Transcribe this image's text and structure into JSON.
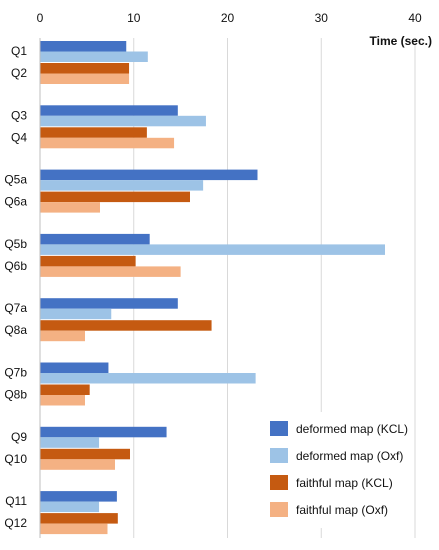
{
  "chart_data": {
    "type": "bar",
    "orientation": "horizontal",
    "xlabel": "Time (sec.)",
    "xlim": [
      0,
      40
    ],
    "xticks": [
      0,
      10,
      20,
      30,
      40
    ],
    "x_axis_position": "top",
    "grid": true,
    "legend_position": "bottom-right",
    "groups": [
      {
        "labels": [
          "Q1",
          "Q2"
        ],
        "bars": [
          {
            "series": "deformed map (KCL)",
            "value": 9.2
          },
          {
            "series": "deformed map (Oxf)",
            "value": 11.5
          },
          {
            "series": "faithful map (KCL)",
            "value": 9.5
          },
          {
            "series": "faithful map (Oxf)",
            "value": 9.5
          }
        ]
      },
      {
        "labels": [
          "Q3",
          "Q4"
        ],
        "bars": [
          {
            "series": "deformed map (KCL)",
            "value": 14.7
          },
          {
            "series": "deformed map (Oxf)",
            "value": 17.7
          },
          {
            "series": "faithful map (KCL)",
            "value": 11.4
          },
          {
            "series": "faithful map (Oxf)",
            "value": 14.3
          }
        ]
      },
      {
        "labels": [
          "Q5a",
          "Q6a"
        ],
        "bars": [
          {
            "series": "deformed map (KCL)",
            "value": 23.2
          },
          {
            "series": "deformed map (Oxf)",
            "value": 17.4
          },
          {
            "series": "faithful map (KCL)",
            "value": 16.0
          },
          {
            "series": "faithful map (Oxf)",
            "value": 6.4
          }
        ]
      },
      {
        "labels": [
          "Q5b",
          "Q6b"
        ],
        "bars": [
          {
            "series": "deformed map (KCL)",
            "value": 11.7
          },
          {
            "series": "deformed map (Oxf)",
            "value": 36.8
          },
          {
            "series": "faithful map (KCL)",
            "value": 10.2
          },
          {
            "series": "faithful map (Oxf)",
            "value": 15.0
          }
        ]
      },
      {
        "labels": [
          "Q7a",
          "Q8a"
        ],
        "bars": [
          {
            "series": "deformed map (KCL)",
            "value": 14.7
          },
          {
            "series": "deformed map (Oxf)",
            "value": 7.6
          },
          {
            "series": "faithful map (KCL)",
            "value": 18.3
          },
          {
            "series": "faithful map (Oxf)",
            "value": 4.8
          }
        ]
      },
      {
        "labels": [
          "Q7b",
          "Q8b"
        ],
        "bars": [
          {
            "series": "deformed map (KCL)",
            "value": 7.3
          },
          {
            "series": "deformed map (Oxf)",
            "value": 23.0
          },
          {
            "series": "faithful map (KCL)",
            "value": 5.3
          },
          {
            "series": "faithful map (Oxf)",
            "value": 4.8
          }
        ]
      },
      {
        "labels": [
          "Q9",
          "Q10"
        ],
        "bars": [
          {
            "series": "deformed map (KCL)",
            "value": 13.5
          },
          {
            "series": "deformed map (Oxf)",
            "value": 6.3
          },
          {
            "series": "faithful map (KCL)",
            "value": 9.6
          },
          {
            "series": "faithful map (Oxf)",
            "value": 8.0
          }
        ]
      },
      {
        "labels": [
          "Q11",
          "Q12"
        ],
        "bars": [
          {
            "series": "deformed map (KCL)",
            "value": 8.2
          },
          {
            "series": "deformed map (Oxf)",
            "value": 6.3
          },
          {
            "series": "faithful map (KCL)",
            "value": 8.3
          },
          {
            "series": "faithful map (Oxf)",
            "value": 7.2
          }
        ]
      }
    ],
    "series": [
      {
        "name": "deformed map (KCL)",
        "color": "#4472C4"
      },
      {
        "name": "deformed map (Oxf)",
        "color": "#9DC3E6"
      },
      {
        "name": "faithful map (KCL)",
        "color": "#C55A11"
      },
      {
        "name": "faithful map (Oxf)",
        "color": "#F4B183"
      }
    ]
  }
}
